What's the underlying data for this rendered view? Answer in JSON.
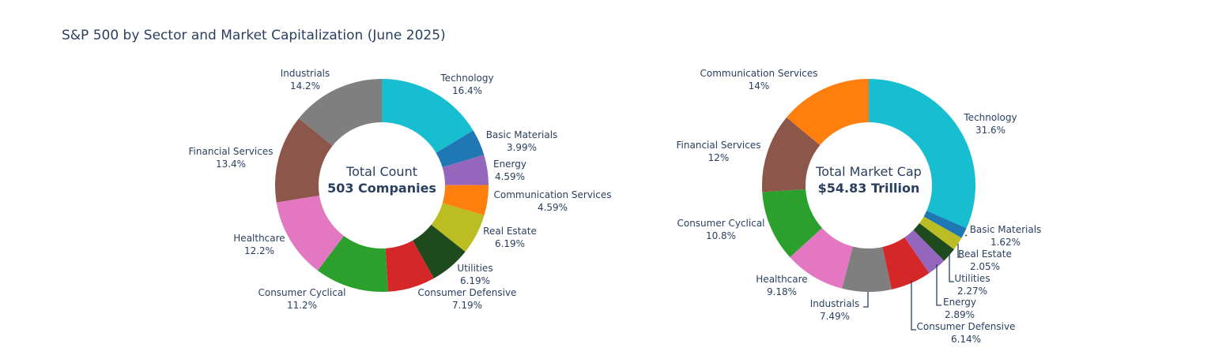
{
  "title": "S&P 500 by Sector and Market Capitalization (June 2025)",
  "colors": {
    "Technology": "#17becf",
    "Basic Materials": "#1f77b4",
    "Energy": "#9467bd",
    "Communication Services": "#ff7f0e",
    "Real Estate": "#bcbd22",
    "Utilities": "#1f4a1e",
    "Consumer Defensive": "#d62728",
    "Consumer Cyclical": "#2ca02c",
    "Healthcare": "#e377c2",
    "Financial Services": "#8c564b",
    "Industrials": "#7f7f7f"
  },
  "chart_data": [
    {
      "type": "pie",
      "hole": true,
      "center_text": [
        "Total Count",
        "503 Companies"
      ],
      "slices": [
        {
          "label": "Technology",
          "value": 16.4,
          "text": "16.4%"
        },
        {
          "label": "Basic Materials",
          "value": 3.99,
          "text": "3.99%"
        },
        {
          "label": "Energy",
          "value": 4.59,
          "text": "4.59%"
        },
        {
          "label": "Communication Services",
          "value": 4.59,
          "text": "4.59%"
        },
        {
          "label": "Real Estate",
          "value": 6.19,
          "text": "6.19%"
        },
        {
          "label": "Utilities",
          "value": 6.19,
          "text": "6.19%"
        },
        {
          "label": "Consumer Defensive",
          "value": 7.19,
          "text": "7.19%"
        },
        {
          "label": "Consumer Cyclical",
          "value": 11.2,
          "text": "11.2%"
        },
        {
          "label": "Healthcare",
          "value": 12.2,
          "text": "12.2%"
        },
        {
          "label": "Financial Services",
          "value": 13.4,
          "text": "13.4%"
        },
        {
          "label": "Industrials",
          "value": 14.2,
          "text": "14.2%"
        }
      ]
    },
    {
      "type": "pie",
      "hole": true,
      "center_text": [
        "Total Market Cap",
        "$54.83 Trillion"
      ],
      "slices": [
        {
          "label": "Technology",
          "value": 31.6,
          "text": "31.6%"
        },
        {
          "label": "Basic Materials",
          "value": 1.62,
          "text": "1.62%"
        },
        {
          "label": "Real Estate",
          "value": 2.05,
          "text": "2.05%"
        },
        {
          "label": "Utilities",
          "value": 2.27,
          "text": "2.27%"
        },
        {
          "label": "Energy",
          "value": 2.89,
          "text": "2.89%"
        },
        {
          "label": "Consumer Defensive",
          "value": 6.14,
          "text": "6.14%"
        },
        {
          "label": "Industrials",
          "value": 7.49,
          "text": "7.49%"
        },
        {
          "label": "Healthcare",
          "value": 9.18,
          "text": "9.18%"
        },
        {
          "label": "Consumer Cyclical",
          "value": 10.8,
          "text": "10.8%"
        },
        {
          "label": "Financial Services",
          "value": 12,
          "text": "12%"
        },
        {
          "label": "Communication Services",
          "value": 14,
          "text": "14%"
        }
      ]
    }
  ]
}
